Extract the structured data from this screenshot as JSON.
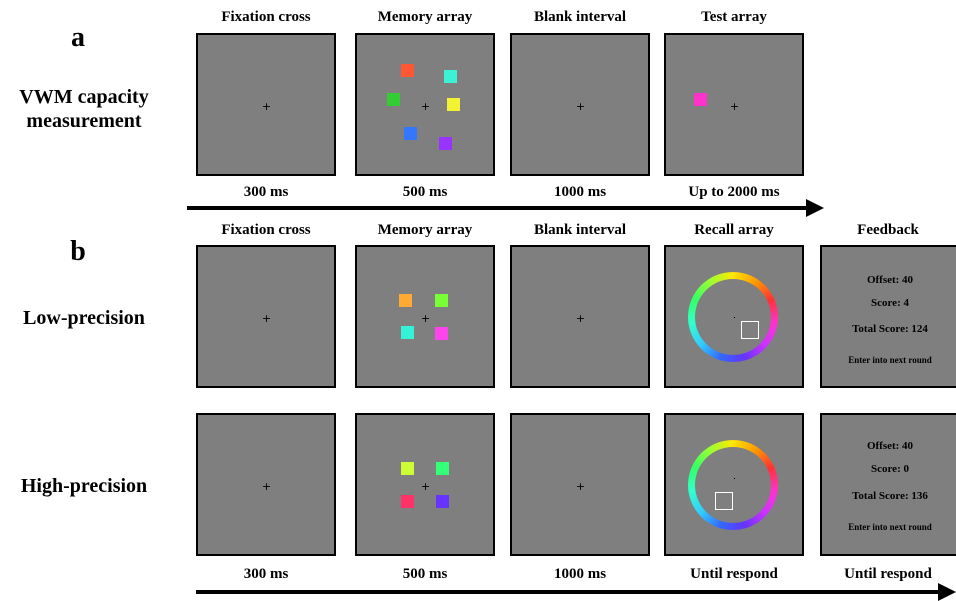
{
  "panel_a": {
    "letter": "a",
    "row_label": "VWM capacity measurement",
    "columns": [
      {
        "title": "Fixation cross",
        "time": "300 ms"
      },
      {
        "title": "Memory array",
        "time": "500 ms"
      },
      {
        "title": "Blank interval",
        "time": "1000 ms"
      },
      {
        "title": "Test array",
        "time": "Up to 2000 ms"
      }
    ],
    "memory_square_colors": [
      "#ff5733",
      "#3cf2d6",
      "#33cc33",
      "#f2f233",
      "#3377ff",
      "#9933ff"
    ],
    "test_square_color": "#ff33cc"
  },
  "panel_b": {
    "letter": "b",
    "columns": [
      {
        "title": "Fixation cross",
        "time": "300 ms"
      },
      {
        "title": "Memory array",
        "time": "500 ms"
      },
      {
        "title": "Blank interval",
        "time": "1000 ms"
      },
      {
        "title": "Recall array",
        "time": "Until respond"
      },
      {
        "title": "Feedback",
        "time": "Until respond"
      }
    ],
    "rows": [
      {
        "label": "Low-precision",
        "memory_square_colors": [
          "#ffaa33",
          "#77ff33",
          "#33f2d6",
          "#ff44ee"
        ],
        "feedback": {
          "offset": "Offset: 40",
          "score": "Score: 4",
          "total": "Total Score: 124",
          "next": "Enter into next round"
        }
      },
      {
        "label": "High-precision",
        "memory_square_colors": [
          "#ccff33",
          "#33ff77",
          "#ff3366",
          "#6633ff"
        ],
        "feedback": {
          "offset": "Offset: 40",
          "score": "Score: 0",
          "total": "Total Score: 136",
          "next": "Enter into next round"
        }
      }
    ]
  },
  "fixation_symbol": "+"
}
